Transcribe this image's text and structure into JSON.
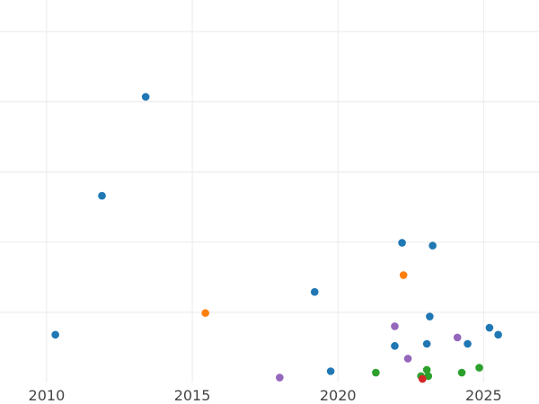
{
  "chart_data": {
    "type": "scatter",
    "title": "",
    "xlabel": "",
    "ylabel": "",
    "xlim": [
      2008.4,
      2026.9
    ],
    "ylim": [
      0,
      5.45
    ],
    "x_ticks": [
      2010,
      2015,
      2020,
      2025
    ],
    "x_tick_labels": [
      "2010",
      "2015",
      "2020",
      "2025"
    ],
    "y_gridlines": [
      1,
      2,
      3,
      4,
      5
    ],
    "grid": true,
    "legend": "none",
    "series": [
      {
        "color": "#1f77b4",
        "points": [
          {
            "x": 2010.3,
            "y": 0.68
          },
          {
            "x": 2011.9,
            "y": 2.66
          },
          {
            "x": 2013.4,
            "y": 4.07
          },
          {
            "x": 2019.2,
            "y": 1.29
          },
          {
            "x": 2019.75,
            "y": 0.16
          },
          {
            "x": 2021.95,
            "y": 0.52
          },
          {
            "x": 2022.2,
            "y": 1.99
          },
          {
            "x": 2023.05,
            "y": 0.55
          },
          {
            "x": 2023.15,
            "y": 0.94
          },
          {
            "x": 2023.25,
            "y": 1.95
          },
          {
            "x": 2024.45,
            "y": 0.55
          },
          {
            "x": 2025.2,
            "y": 0.78
          },
          {
            "x": 2025.5,
            "y": 0.68
          }
        ]
      },
      {
        "color": "#ff7f0e",
        "points": [
          {
            "x": 2015.45,
            "y": 0.99
          },
          {
            "x": 2022.25,
            "y": 1.53
          }
        ]
      },
      {
        "color": "#2ca02c",
        "points": [
          {
            "x": 2021.3,
            "y": 0.14
          },
          {
            "x": 2022.85,
            "y": 0.09
          },
          {
            "x": 2023.05,
            "y": 0.18
          },
          {
            "x": 2023.1,
            "y": 0.09
          },
          {
            "x": 2024.25,
            "y": 0.14
          },
          {
            "x": 2024.85,
            "y": 0.21
          }
        ]
      },
      {
        "color": "#d62728",
        "points": [
          {
            "x": 2022.9,
            "y": 0.05
          }
        ]
      },
      {
        "color": "#9467bd",
        "points": [
          {
            "x": 2018.0,
            "y": 0.07
          },
          {
            "x": 2021.95,
            "y": 0.8
          },
          {
            "x": 2022.4,
            "y": 0.34
          },
          {
            "x": 2024.1,
            "y": 0.64
          }
        ]
      }
    ]
  }
}
